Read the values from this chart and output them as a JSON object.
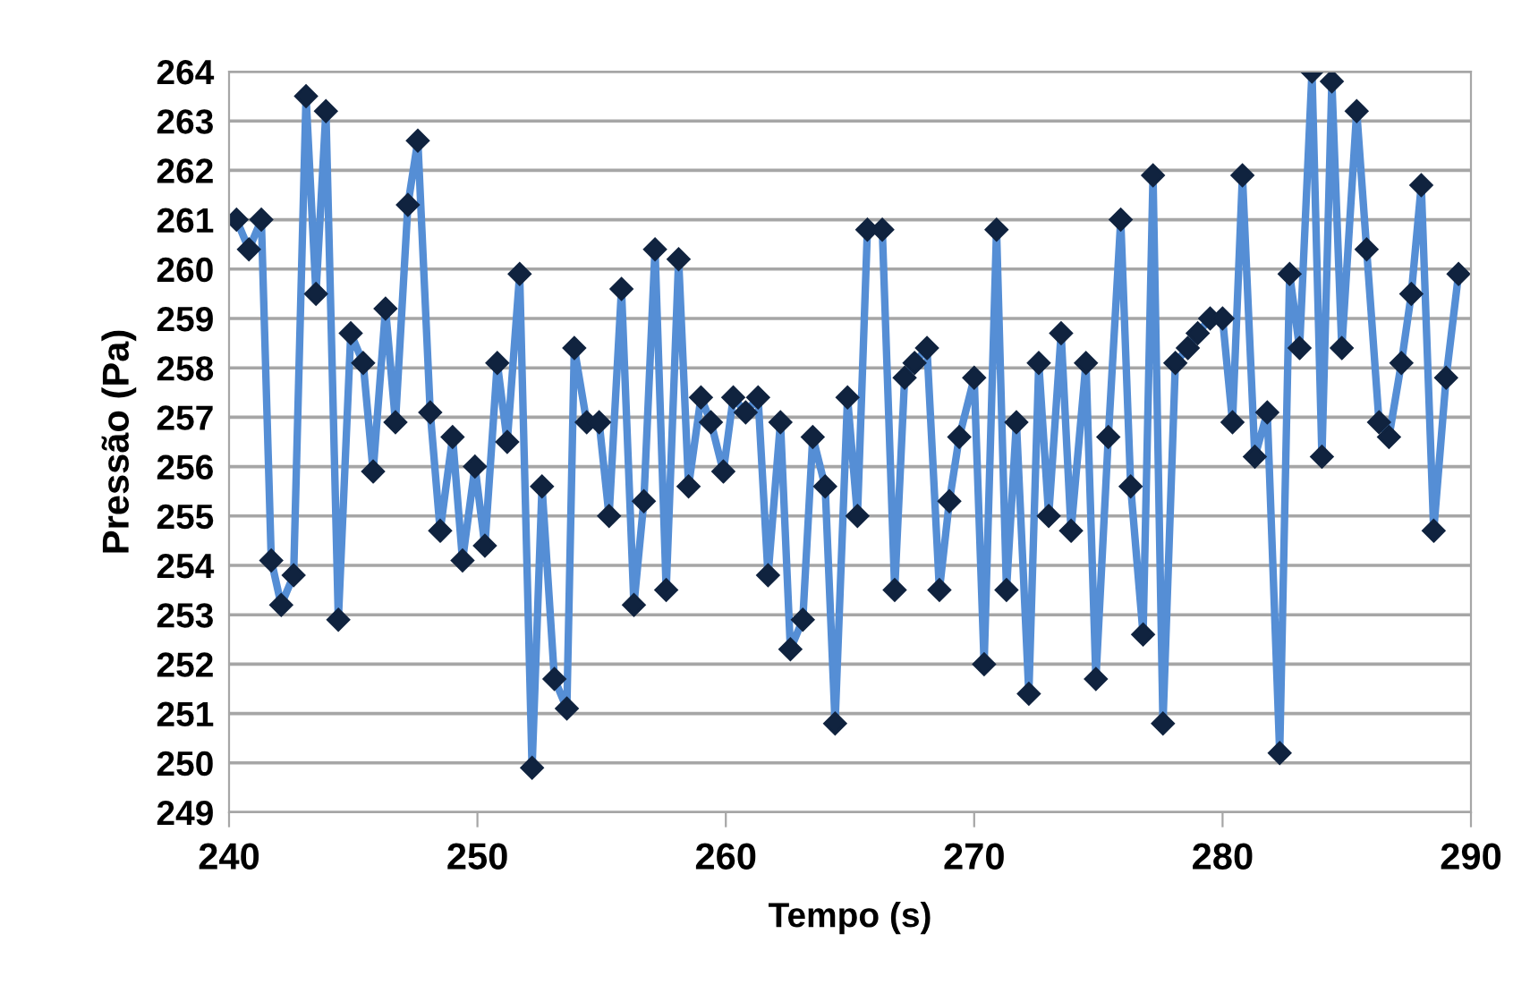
{
  "chart_data": {
    "type": "line",
    "xlabel": "Tempo (s)",
    "ylabel": "Pressão (Pa)",
    "xlim": [
      240,
      290
    ],
    "xticks": [
      240,
      250,
      260,
      270,
      280,
      290
    ],
    "ylim": [
      249,
      264
    ],
    "yticks": [
      249,
      250,
      251,
      252,
      253,
      254,
      255,
      256,
      257,
      258,
      259,
      260,
      261,
      262,
      263,
      264
    ],
    "grid": "y",
    "marker": "diamond",
    "line_style": "solid",
    "series": [
      {
        "color": "#558ed5",
        "x": [
          240.3,
          240.8,
          241.3,
          241.7,
          242.1,
          242.6,
          243.1,
          243.5,
          243.9,
          244.4,
          244.9,
          245.4,
          245.8,
          246.3,
          246.7,
          247.2,
          247.6,
          248.1,
          248.5,
          249.0,
          249.4,
          249.9,
          250.3,
          250.8,
          251.2,
          251.7,
          252.2,
          252.6,
          253.1,
          253.6,
          253.9,
          254.4,
          254.9,
          255.3,
          255.8,
          256.3,
          256.7,
          257.15,
          257.6,
          258.1,
          258.5,
          259.0,
          259.4,
          259.9,
          260.3,
          260.8,
          261.3,
          261.7,
          262.2,
          262.6,
          263.1,
          263.5,
          264.0,
          264.4,
          264.9,
          265.3,
          265.7,
          266.3,
          266.8,
          267.2,
          267.6,
          268.1,
          268.6,
          269.0,
          269.4,
          270.0,
          270.4,
          270.9,
          271.3,
          271.7,
          272.2,
          272.6,
          273.0,
          273.5,
          273.9,
          274.5,
          274.9,
          275.4,
          275.9,
          276.3,
          276.8,
          277.2,
          277.6,
          278.1,
          278.6,
          279.0,
          279.5,
          280.0,
          280.4,
          280.8,
          281.3,
          281.8,
          282.3,
          282.7,
          283.1,
          283.6,
          284.0,
          284.4,
          284.8,
          285.4,
          285.8,
          286.3,
          286.7,
          287.2,
          287.6,
          288.0,
          288.5,
          289.0,
          289.5
        ],
        "values": [
          261.0,
          260.4,
          261.0,
          254.1,
          253.2,
          253.8,
          263.5,
          259.5,
          263.2,
          252.9,
          258.7,
          258.1,
          255.9,
          259.2,
          256.9,
          261.3,
          262.6,
          257.1,
          254.7,
          256.6,
          254.1,
          256.0,
          254.4,
          258.1,
          256.5,
          259.9,
          249.9,
          255.6,
          251.7,
          251.1,
          258.4,
          256.9,
          256.9,
          255.0,
          259.6,
          253.2,
          255.3,
          260.4,
          253.5,
          260.2,
          255.6,
          257.4,
          256.9,
          255.9,
          257.4,
          257.1,
          257.4,
          253.8,
          256.9,
          252.3,
          252.9,
          256.6,
          255.6,
          250.8,
          257.4,
          255.0,
          260.8,
          260.8,
          253.5,
          257.8,
          258.1,
          258.4,
          253.5,
          255.3,
          256.6,
          257.8,
          252.0,
          260.8,
          253.5,
          256.9,
          251.4,
          258.1,
          255.0,
          258.7,
          254.7,
          258.1,
          251.7,
          256.6,
          261.0,
          255.6,
          252.6,
          261.9,
          250.8,
          258.1,
          258.4,
          258.7,
          259.0,
          259.0,
          256.9,
          261.9,
          256.2,
          257.1,
          250.2,
          259.9,
          258.4,
          264.0,
          256.2,
          263.8,
          258.4,
          263.2,
          260.4,
          256.9,
          256.6,
          258.1,
          259.5,
          261.7,
          254.7,
          257.8,
          259.9
        ]
      }
    ]
  }
}
